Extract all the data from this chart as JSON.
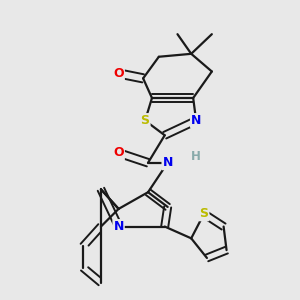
{
  "background_color": "#e8e8e8",
  "bond_color": "#1a1a1a",
  "atom_colors": {
    "N": "#0000ee",
    "O": "#ee0000",
    "S": "#bbbb00",
    "H": "#88aaaa",
    "C": "#1a1a1a"
  },
  "figsize": [
    3.0,
    3.0
  ],
  "dpi": 100
}
